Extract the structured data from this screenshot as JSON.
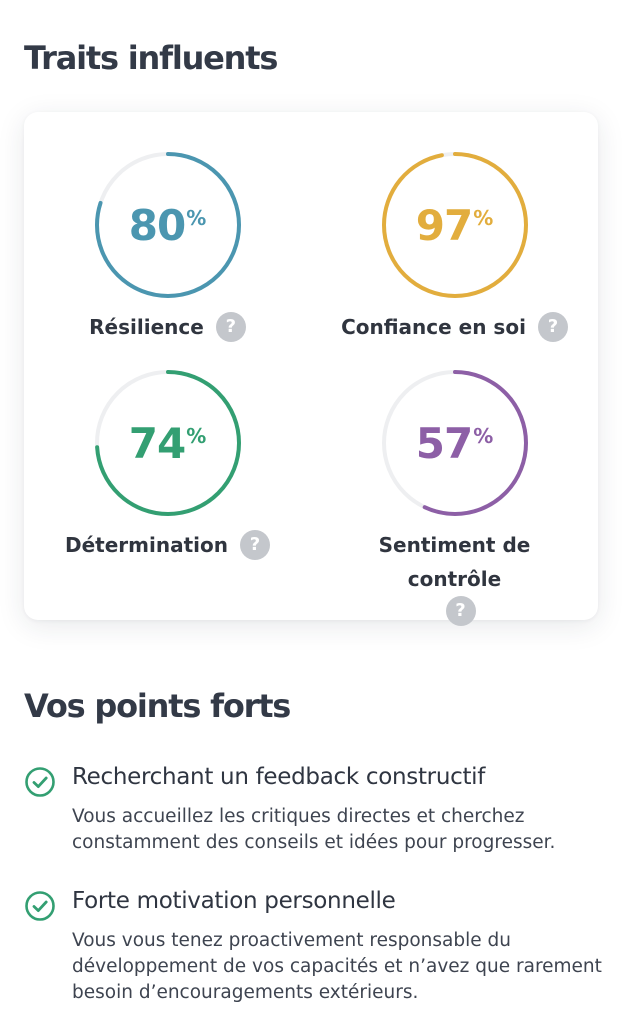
{
  "traits_section": {
    "title": "Traits influents",
    "help_glyph": "?",
    "percent_sign": "%",
    "track_color": "#eeeff1",
    "items": [
      {
        "label": "Résilience",
        "value": 80,
        "value_text": "80",
        "color": "#4b96b0"
      },
      {
        "label": "Confiance en soi",
        "value": 97,
        "value_text": "97",
        "color": "#e2ad3d"
      },
      {
        "label": "Détermination",
        "value": 74,
        "value_text": "74",
        "color": "#339f72"
      },
      {
        "label": "Sentiment de contrôle",
        "value": 57,
        "value_text": "57",
        "color": "#8d5fa6"
      }
    ]
  },
  "strengths_section": {
    "title": "Vos points forts",
    "check_color": "#339f72",
    "items": [
      {
        "title": "Recherchant un feedback constructif",
        "description": "Vous accueillez les critiques directes et cherchez constamment des conseils et idées pour progresser."
      },
      {
        "title": "Forte motivation personnelle",
        "description": "Vous vous tenez proactivement responsable du développement de vos capacités et n’avez que rarement besoin d’encouragements extérieurs."
      }
    ]
  }
}
